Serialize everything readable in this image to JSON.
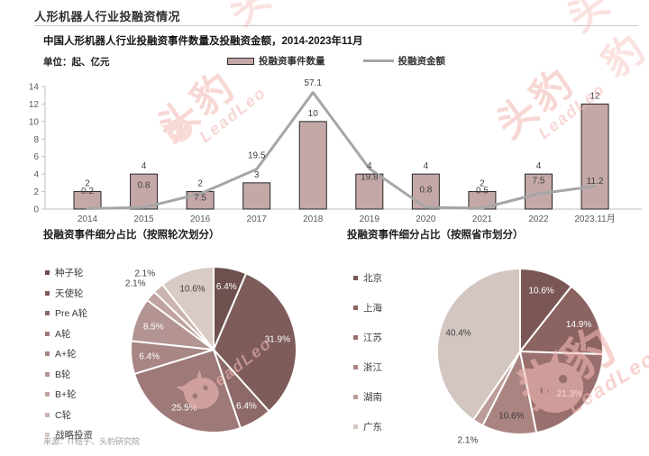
{
  "page": {
    "title": "人形机器人行业投融资情况",
    "subtitle": "中国人形机器人行业投融资事件数量及投融资金额，2014-2023年11月",
    "unit_label": "单位：起、亿元",
    "source": "来源：IT桔子、头豹研究院",
    "watermark": {
      "cn": "头豹",
      "en": "LeadLeo"
    },
    "colors": {
      "bar_fill": "#c4a8a7",
      "bar_border": "#262626",
      "line": "#a6a6a6",
      "axis": "#bfbfbf",
      "tick_label": "#595959",
      "data_label": "#404040",
      "watermark": "#f2b7b1"
    }
  },
  "chart_data": [
    {
      "id": "combo",
      "type": "bar",
      "title": "中国人形机器人行业投融资事件数量及投融资金额，2014-2023年11月",
      "categories": [
        "2014",
        "2015",
        "2016",
        "2017",
        "2018",
        "2019",
        "2020",
        "2021",
        "2022",
        "2023.11月"
      ],
      "series": [
        {
          "name": "投融资事件数量",
          "type": "bar",
          "values": [
            2,
            4,
            2,
            3,
            10,
            4,
            4,
            2,
            4,
            12
          ]
        },
        {
          "name": "投融资金额",
          "type": "line",
          "values": [
            0.2,
            0.8,
            7.5,
            19.5,
            57.1,
            19.8,
            0.8,
            0.5,
            7.5,
            11.2
          ]
        }
      ],
      "left_axis": {
        "min": 0,
        "max": 14,
        "step": 2
      },
      "hidden_right_axis": {
        "min": 0,
        "max": 60
      },
      "grid": false,
      "legend_position": "top"
    },
    {
      "id": "pie-rounds",
      "type": "pie",
      "title": "投融资事件细分占比（按照轮次划分）",
      "slices": [
        {
          "label": "种子轮",
          "value": 6.4,
          "color": "#6e504f",
          "label_color": "#ffffff",
          "outside": false
        },
        {
          "label": "天使轮",
          "value": 31.9,
          "color": "#7d5c5a",
          "label_color": "#ffffff",
          "outside": false
        },
        {
          "label": "Pre A轮",
          "value": 6.4,
          "color": "#8d6a68",
          "label_color": "#ffffff",
          "outside": false
        },
        {
          "label": "A轮",
          "value": 25.5,
          "color": "#9d7977",
          "label_color": "#ffffff",
          "outside": false
        },
        {
          "label": "A+轮",
          "value": 6.4,
          "color": "#a88684",
          "label_color": "#ffffff",
          "outside": false
        },
        {
          "label": "B轮",
          "value": 8.5,
          "color": "#b39492",
          "label_color": "#ffffff",
          "outside": false
        },
        {
          "label": "B+轮",
          "value": 2.1,
          "color": "#c0a3a0",
          "label_color": "#404040",
          "outside": true
        },
        {
          "label": "C轮",
          "value": 2.1,
          "color": "#cbb3af",
          "label_color": "#404040",
          "outside": true
        },
        {
          "label": "战略投资",
          "value": 10.6,
          "color": "#d8cac4",
          "label_color": "#404040",
          "outside": false
        }
      ]
    },
    {
      "id": "pie-provinces",
      "type": "pie",
      "title": "投融资事件细分占比（按照省市划分）",
      "slices": [
        {
          "label": "北京",
          "value": 10.6,
          "color": "#7a5655",
          "label_color": "#ffffff",
          "outside": false
        },
        {
          "label": "上海",
          "value": 14.9,
          "color": "#8b6361",
          "label_color": "#ffffff",
          "outside": false
        },
        {
          "label": "江苏",
          "value": 21.3,
          "color": "#9a706e",
          "label_color": "#ffffff",
          "outside": false
        },
        {
          "label": "浙江",
          "value": 10.6,
          "color": "#aa8481",
          "label_color": "#3a3a3a",
          "outside": false
        },
        {
          "label": "湖南",
          "value": 2.1,
          "color": "#bb9c98",
          "label_color": "#404040",
          "outside": true
        },
        {
          "label": "广东",
          "value": 40.4,
          "color": "#d3c6c1",
          "label_color": "#404040",
          "outside": false
        }
      ]
    }
  ]
}
